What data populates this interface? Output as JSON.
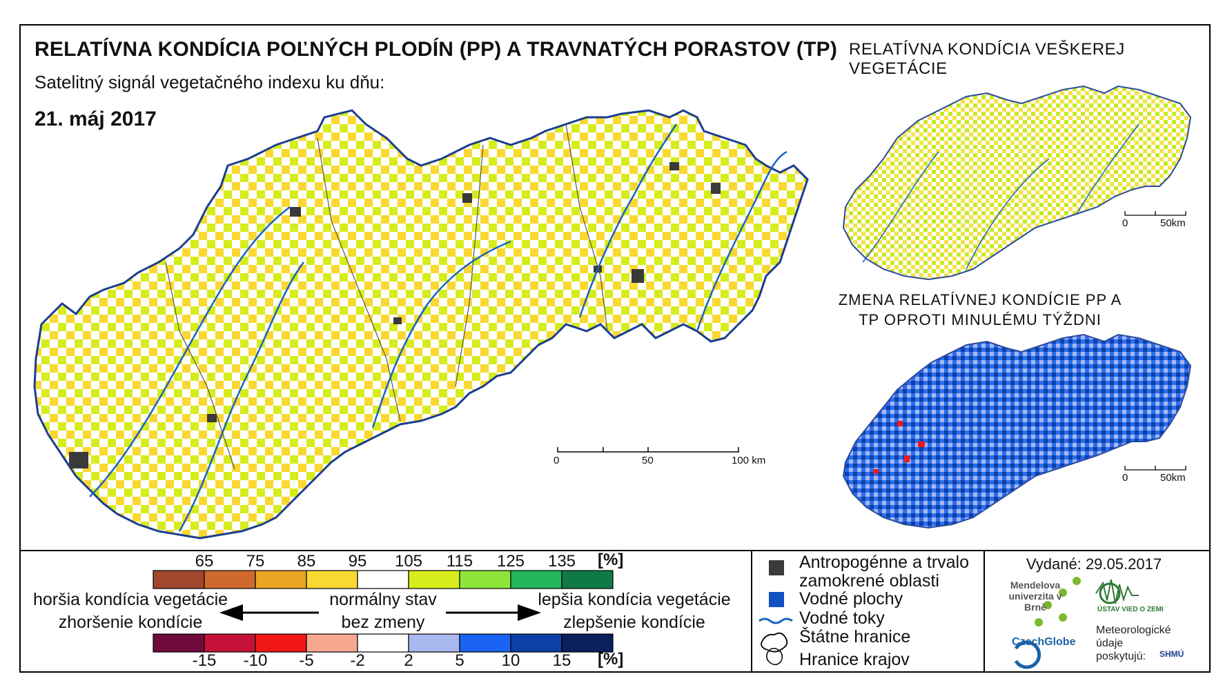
{
  "main_title": "RELATÍVNA KONDÍCIA POĽNÝCH PLODÍN (PP) A TRAVNATÝCH PORASTOV (TP)",
  "subtitle": "Satelitný signál vegetačného indexu ku dňu:",
  "date": "21. máj 2017",
  "inset_top_title": "RELATÍVNA KONDÍCIA VEŠKEREJ VEGETÁCIE",
  "inset_bottom_title": "ZMENA RELATÍVNEJ KONDÍCIE PP A TP OPROTI MINULÉMU TÝŽDNI",
  "scalebar_main": [
    "0",
    "50",
    "100 km"
  ],
  "scalebar_inset": [
    "0",
    "50km"
  ],
  "legend_condition": {
    "ticks": [
      "65",
      "75",
      "85",
      "95",
      "105",
      "115",
      "125",
      "135"
    ],
    "unit": "[%]",
    "colors": [
      "#a0472e",
      "#cf6a2c",
      "#e8a422",
      "#f9d832",
      "#ffffff",
      "#d7ec1c",
      "#8ee63a",
      "#22b55a",
      "#0f7a46"
    ]
  },
  "legend_change": {
    "ticks": [
      "-15",
      "-10",
      "-5",
      "-2",
      "2",
      "5",
      "10",
      "15"
    ],
    "unit": "[%]",
    "colors": [
      "#6e0a3c",
      "#c4123a",
      "#f21818",
      "#f7a88f",
      "#ffffff",
      "#a9b7ef",
      "#1a63f5",
      "#0e3fa8",
      "#0a1f5c"
    ]
  },
  "legend_left_text": [
    "horšia kondícia vegetácie",
    "zhoršenie kondície"
  ],
  "legend_center_text": [
    "normálny stav",
    "bez zmeny"
  ],
  "legend_right_text": [
    "lepšia kondícia vegetácie",
    "zlepšenie kondície"
  ],
  "map_legend": {
    "anthropogenic": "Antropogénne a trvalo zamokrené oblasti",
    "water_bodies": "Vodné plochy",
    "rivers": "Vodné toky",
    "state_borders": "Štátne hranice",
    "region_borders": "Hranice krajov"
  },
  "issued": "Vydané: 29.05.2017",
  "logos": {
    "mendel": "Mendelova univerzita v Brně",
    "czechglobe": "CzechGlobe",
    "ustav": "ÚSTAV VIED O ZEMI",
    "meteo": "Meteorologické údaje poskytujú:",
    "shmu": "SHMÚ"
  },
  "colors": {
    "river": "#1565c0",
    "anthropogenic": "#3a3a3a",
    "water": "#1251c4"
  }
}
